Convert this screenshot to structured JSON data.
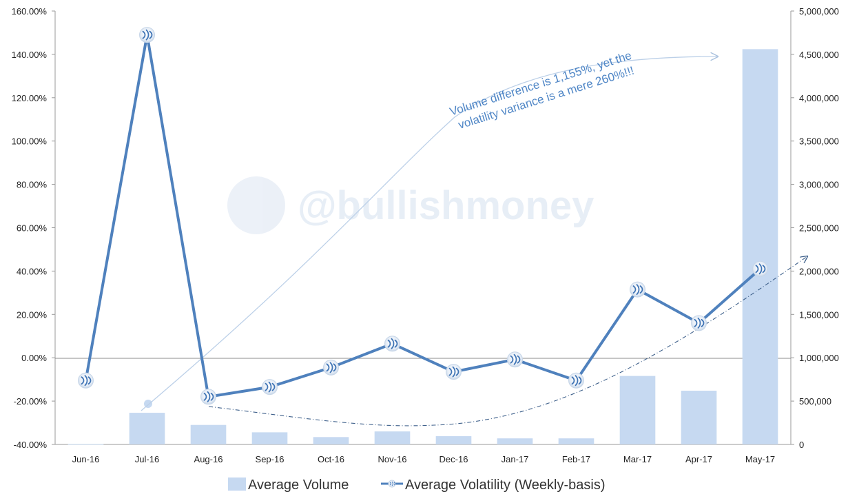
{
  "chart_data": {
    "type": "bar",
    "title": "",
    "xlabel": "",
    "ylabel": "",
    "categories": [
      "Jun-16",
      "Jul-16",
      "Aug-16",
      "Sep-16",
      "Oct-16",
      "Nov-16",
      "Dec-16",
      "Jan-17",
      "Feb-17",
      "Mar-17",
      "Apr-17",
      "May-17"
    ],
    "series": [
      {
        "name": "Average Volume",
        "type": "bar",
        "axis": "right",
        "color": "#c6d9f1",
        "values": [
          5000,
          365000,
          225000,
          140000,
          85000,
          150000,
          95000,
          70000,
          70000,
          790000,
          620000,
          4560000
        ]
      },
      {
        "name": "Average Volatility (Weekly-basis)",
        "type": "line",
        "axis": "left",
        "color": "#4f81bd",
        "marker": "steem-logo-icon",
        "values": [
          -10.5,
          149.0,
          -18.0,
          -13.5,
          -4.5,
          6.5,
          -6.5,
          -0.8,
          -10.5,
          31.5,
          16.0,
          41.0
        ]
      }
    ],
    "y_left": {
      "ylim": [
        -40,
        160
      ],
      "ticks": [
        -40,
        -20,
        0,
        20,
        40,
        60,
        80,
        100,
        120,
        140,
        160
      ],
      "tick_labels": [
        "-40.00%",
        "-20.00%",
        "0.00%",
        "20.00%",
        "40.00%",
        "60.00%",
        "80.00%",
        "100.00%",
        "120.00%",
        "140.00%",
        "160.00%"
      ]
    },
    "y_right": {
      "ylim": [
        0,
        5000000
      ],
      "ticks": [
        0,
        500000,
        1000000,
        1500000,
        2000000,
        2500000,
        3000000,
        3500000,
        4000000,
        4500000,
        5000000
      ],
      "tick_labels": [
        "0",
        "500,000",
        "1,000,000",
        "1,500,000",
        "2,000,000",
        "2,500,000",
        "3,000,000",
        "3,500,000",
        "4,000,000",
        "4,500,000",
        "5,000,000"
      ]
    },
    "legend": {
      "placement": "bottom",
      "entries": [
        "Average Volume",
        "Average Volatility (Weekly-basis)"
      ]
    },
    "annotation": {
      "lines": [
        "Volume difference is 1,155%, yet the",
        "volatility variance is a mere 260%!!!"
      ]
    },
    "watermark": "@bullishmoney",
    "grid": false
  }
}
